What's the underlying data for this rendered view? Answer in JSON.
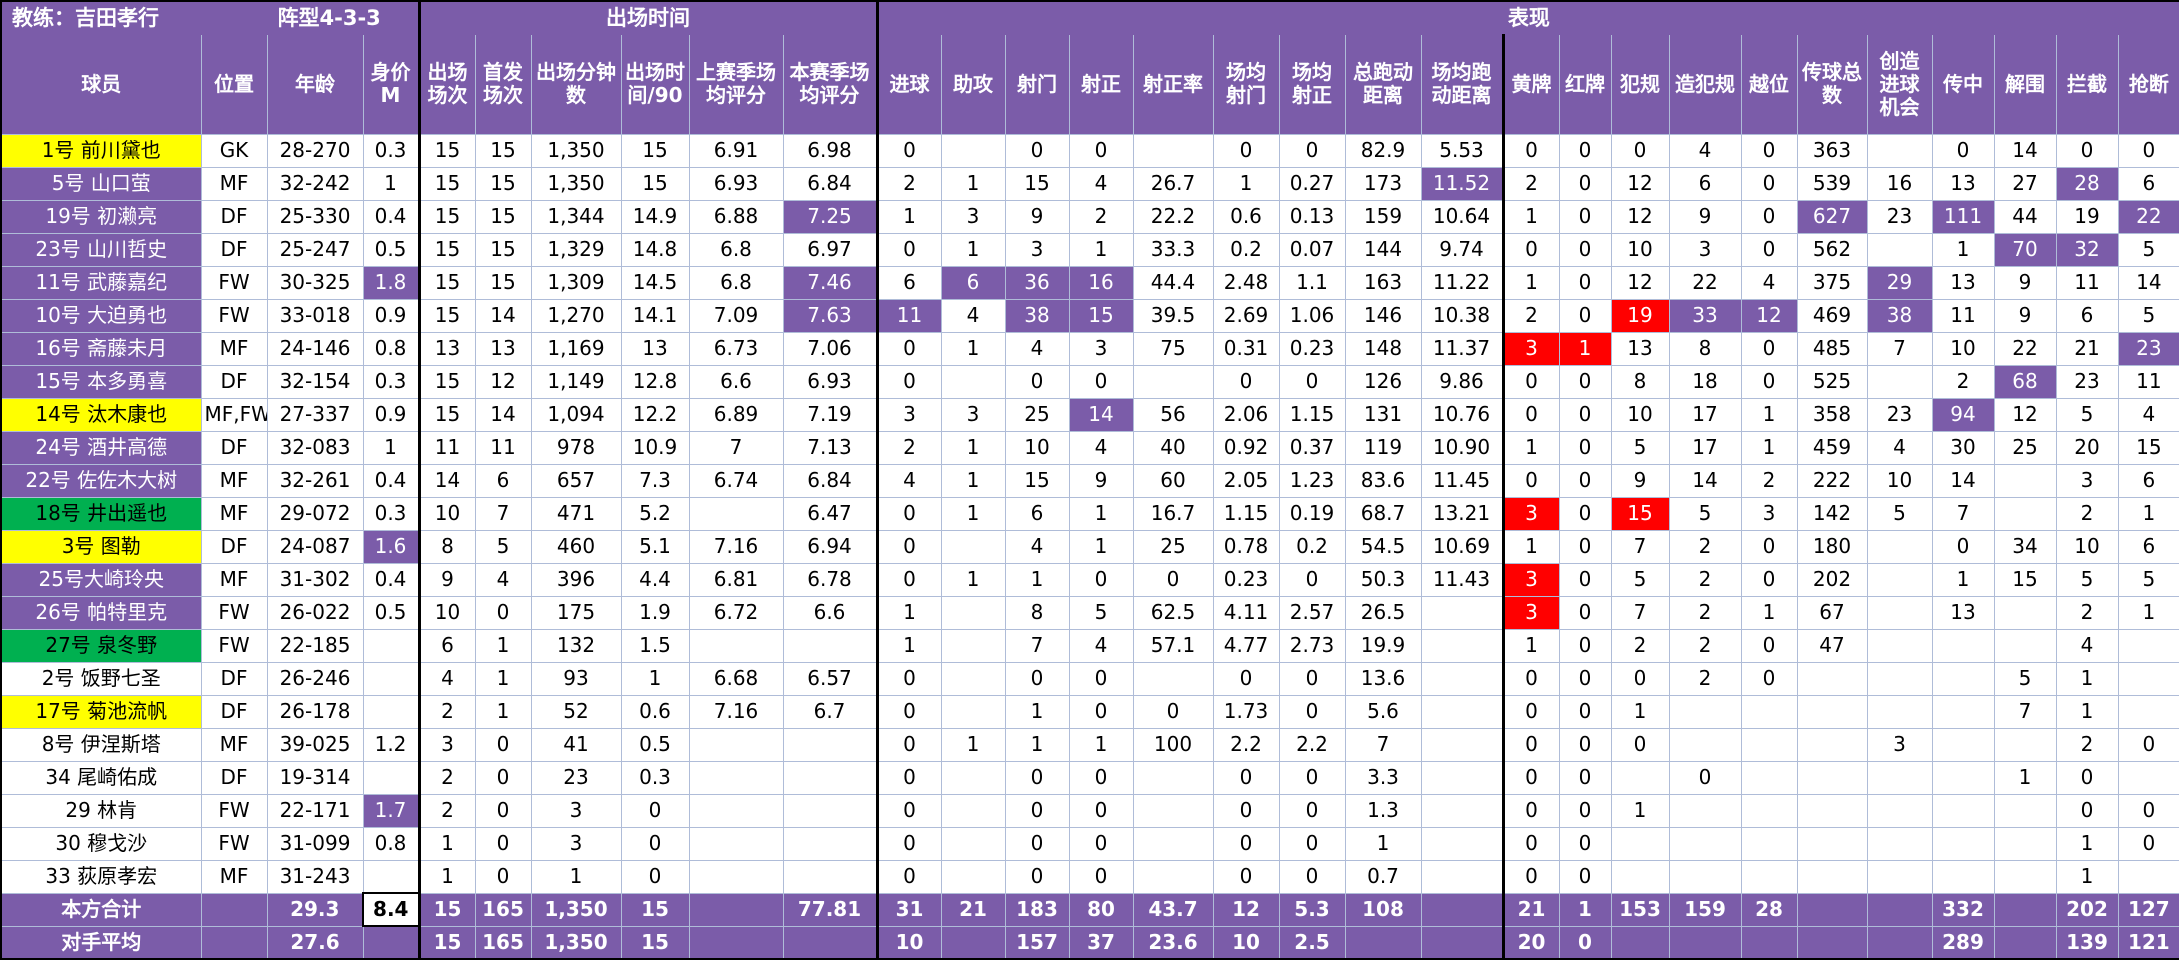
{
  "meta": {
    "coach_label": "教练：吉田孝行",
    "formation_label": "阵型4-3-3",
    "section_playing_time": "出场时间",
    "section_performance": "表现"
  },
  "colors": {
    "header-purple": "#7B5CA9",
    "highlight-purple": "#7B5CA9",
    "highlight-red": "#FF0000",
    "name-yellow": "#FFFF00",
    "name-green": "#00B050",
    "grid-line": "#AFBCD8"
  },
  "layout_note": "highlight keys are 0-based indexes into cells[]; purple = purple bg white text, red = red bg white text, selected = white cell with black border",
  "columns": [
    "球员",
    "位置",
    "年龄",
    "身价M",
    "出场场次",
    "首发场次",
    "出场分钟数",
    "出场时间/90",
    "上赛季场均评分",
    "本赛季场均评分",
    "进球",
    "助攻",
    "射门",
    "射正",
    "射正率",
    "场均射门",
    "场均射正",
    "总跑动距离",
    "场均跑动距离",
    "黄牌",
    "红牌",
    "犯规",
    "造犯规",
    "越位",
    "传球总数",
    "创造进球机会",
    "传中",
    "解围",
    "拦截",
    "抢断"
  ],
  "players": [
    {
      "name": "1号 前川黛也",
      "name_bg": "yellow",
      "cells": [
        "GK",
        "28-270",
        "0.3",
        "15",
        "15",
        "1,350",
        "15",
        "6.91",
        "6.98",
        "0",
        "",
        "0",
        "0",
        "",
        "0",
        "0",
        "82.9",
        "5.53",
        "0",
        "0",
        "0",
        "4",
        "0",
        "363",
        "",
        "0",
        "14",
        "0",
        "0"
      ],
      "highlights": {}
    },
    {
      "name": "5号 山口萤",
      "name_bg": "purple",
      "cells": [
        "MF",
        "32-242",
        "1",
        "15",
        "15",
        "1,350",
        "15",
        "6.93",
        "6.84",
        "2",
        "1",
        "15",
        "4",
        "26.7",
        "1",
        "0.27",
        "173",
        "11.52",
        "2",
        "0",
        "12",
        "6",
        "0",
        "539",
        "16",
        "13",
        "27",
        "28",
        "6"
      ],
      "highlights": {
        "17": "purple",
        "27": "purple"
      }
    },
    {
      "name": "19号 初濑亮",
      "name_bg": "purple",
      "cells": [
        "DF",
        "25-330",
        "0.4",
        "15",
        "15",
        "1,344",
        "14.9",
        "6.88",
        "7.25",
        "1",
        "3",
        "9",
        "2",
        "22.2",
        "0.6",
        "0.13",
        "159",
        "10.64",
        "1",
        "0",
        "12",
        "9",
        "0",
        "627",
        "23",
        "111",
        "44",
        "19",
        "22"
      ],
      "highlights": {
        "8": "purple",
        "23": "purple",
        "25": "purple",
        "28": "purple"
      }
    },
    {
      "name": "23号 山川哲史",
      "name_bg": "purple",
      "cells": [
        "DF",
        "25-247",
        "0.5",
        "15",
        "15",
        "1,329",
        "14.8",
        "6.8",
        "6.97",
        "0",
        "1",
        "3",
        "1",
        "33.3",
        "0.2",
        "0.07",
        "144",
        "9.74",
        "0",
        "0",
        "10",
        "3",
        "0",
        "562",
        "",
        "1",
        "70",
        "32",
        "5"
      ],
      "highlights": {
        "26": "purple",
        "27": "purple"
      }
    },
    {
      "name": "11号 武藤嘉纪",
      "name_bg": "purple",
      "cells": [
        "FW",
        "30-325",
        "1.8",
        "15",
        "15",
        "1,309",
        "14.5",
        "6.8",
        "7.46",
        "6",
        "6",
        "36",
        "16",
        "44.4",
        "2.48",
        "1.1",
        "163",
        "11.22",
        "1",
        "0",
        "12",
        "22",
        "4",
        "375",
        "29",
        "13",
        "9",
        "11",
        "14"
      ],
      "highlights": {
        "2": "purple",
        "8": "purple",
        "10": "purple",
        "11": "purple",
        "12": "purple",
        "24": "purple"
      }
    },
    {
      "name": "10号 大迫勇也",
      "name_bg": "purple",
      "cells": [
        "FW",
        "33-018",
        "0.9",
        "15",
        "14",
        "1,270",
        "14.1",
        "7.09",
        "7.63",
        "11",
        "4",
        "38",
        "15",
        "39.5",
        "2.69",
        "1.06",
        "146",
        "10.38",
        "2",
        "0",
        "19",
        "33",
        "12",
        "469",
        "38",
        "11",
        "9",
        "6",
        "5"
      ],
      "highlights": {
        "8": "purple",
        "9": "purple",
        "11": "purple",
        "12": "purple",
        "20": "red",
        "21": "purple",
        "22": "purple",
        "24": "purple"
      }
    },
    {
      "name": "16号 斋藤未月",
      "name_bg": "purple",
      "cells": [
        "MF",
        "24-146",
        "0.8",
        "13",
        "13",
        "1,169",
        "13",
        "6.73",
        "7.06",
        "0",
        "1",
        "4",
        "3",
        "75",
        "0.31",
        "0.23",
        "148",
        "11.37",
        "3",
        "1",
        "13",
        "8",
        "0",
        "485",
        "7",
        "10",
        "22",
        "21",
        "23"
      ],
      "highlights": {
        "18": "red",
        "19": "red",
        "28": "purple"
      }
    },
    {
      "name": "15号 本多勇喜",
      "name_bg": "purple",
      "cells": [
        "DF",
        "32-154",
        "0.3",
        "15",
        "12",
        "1,149",
        "12.8",
        "6.6",
        "6.93",
        "0",
        "",
        "0",
        "0",
        "",
        "0",
        "0",
        "126",
        "9.86",
        "0",
        "0",
        "8",
        "18",
        "0",
        "525",
        "",
        "2",
        "68",
        "23",
        "11"
      ],
      "highlights": {
        "26": "purple"
      }
    },
    {
      "name": "14号 汰木康也",
      "name_bg": "yellow",
      "cells": [
        "MF,FW",
        "27-337",
        "0.9",
        "15",
        "14",
        "1,094",
        "12.2",
        "6.89",
        "7.19",
        "3",
        "3",
        "25",
        "14",
        "56",
        "2.06",
        "1.15",
        "131",
        "10.76",
        "0",
        "0",
        "10",
        "17",
        "1",
        "358",
        "23",
        "94",
        "12",
        "5",
        "4"
      ],
      "highlights": {
        "12": "purple",
        "25": "purple"
      }
    },
    {
      "name": "24号 酒井高德",
      "name_bg": "purple",
      "cells": [
        "DF",
        "32-083",
        "1",
        "11",
        "11",
        "978",
        "10.9",
        "7",
        "7.13",
        "2",
        "1",
        "10",
        "4",
        "40",
        "0.92",
        "0.37",
        "119",
        "10.90",
        "1",
        "0",
        "5",
        "17",
        "1",
        "459",
        "4",
        "30",
        "25",
        "20",
        "15"
      ],
      "highlights": {}
    },
    {
      "name": "22号 佐佐木大树",
      "name_bg": "purple",
      "cells": [
        "MF",
        "32-261",
        "0.4",
        "14",
        "6",
        "657",
        "7.3",
        "6.74",
        "6.84",
        "4",
        "1",
        "15",
        "9",
        "60",
        "2.05",
        "1.23",
        "83.6",
        "11.45",
        "0",
        "0",
        "9",
        "14",
        "2",
        "222",
        "10",
        "14",
        "",
        "3",
        "6"
      ],
      "highlights": {}
    },
    {
      "name": "18号 井出遥也",
      "name_bg": "green",
      "cells": [
        "MF",
        "29-072",
        "0.3",
        "10",
        "7",
        "471",
        "5.2",
        "",
        "6.47",
        "0",
        "1",
        "6",
        "1",
        "16.7",
        "1.15",
        "0.19",
        "68.7",
        "13.21",
        "3",
        "0",
        "15",
        "5",
        "3",
        "142",
        "5",
        "7",
        "",
        "2",
        "1"
      ],
      "highlights": {
        "18": "red",
        "20": "red"
      }
    },
    {
      "name": "3号 图勒",
      "name_bg": "yellow",
      "cells": [
        "DF",
        "24-087",
        "1.6",
        "8",
        "5",
        "460",
        "5.1",
        "7.16",
        "6.94",
        "0",
        "",
        "4",
        "1",
        "25",
        "0.78",
        "0.2",
        "54.5",
        "10.69",
        "1",
        "0",
        "7",
        "2",
        "0",
        "180",
        "",
        "0",
        "34",
        "10",
        "6"
      ],
      "highlights": {
        "2": "purple"
      }
    },
    {
      "name": "25号大崎玲央",
      "name_bg": "purple",
      "cells": [
        "MF",
        "31-302",
        "0.4",
        "9",
        "4",
        "396",
        "4.4",
        "6.81",
        "6.78",
        "0",
        "1",
        "1",
        "0",
        "0",
        "0.23",
        "0",
        "50.3",
        "11.43",
        "3",
        "0",
        "5",
        "2",
        "0",
        "202",
        "",
        "1",
        "15",
        "5",
        "5"
      ],
      "highlights": {
        "18": "red"
      }
    },
    {
      "name": "26号 帕特里克",
      "name_bg": "purple",
      "cells": [
        "FW",
        "26-022",
        "0.5",
        "10",
        "0",
        "175",
        "1.9",
        "6.72",
        "6.6",
        "1",
        "",
        "8",
        "5",
        "62.5",
        "4.11",
        "2.57",
        "26.5",
        "",
        "3",
        "0",
        "7",
        "2",
        "1",
        "67",
        "",
        "13",
        "",
        "2",
        "1"
      ],
      "highlights": {
        "18": "red"
      }
    },
    {
      "name": "27号 泉冬野",
      "name_bg": "green",
      "cells": [
        "FW",
        "22-185",
        "",
        "6",
        "1",
        "132",
        "1.5",
        "",
        "",
        "1",
        "",
        "7",
        "4",
        "57.1",
        "4.77",
        "2.73",
        "19.9",
        "",
        "1",
        "0",
        "2",
        "2",
        "0",
        "47",
        "",
        "",
        "",
        "4",
        ""
      ],
      "highlights": {}
    },
    {
      "name": "2号 饭野七圣",
      "name_bg": "white",
      "cells": [
        "DF",
        "26-246",
        "",
        "4",
        "1",
        "93",
        "1",
        "6.68",
        "6.57",
        "0",
        "",
        "0",
        "0",
        "",
        "0",
        "0",
        "13.6",
        "",
        "0",
        "0",
        "0",
        "2",
        "0",
        "",
        "",
        "",
        "5",
        "1",
        ""
      ],
      "highlights": {}
    },
    {
      "name": "17号 菊池流帆",
      "name_bg": "yellow",
      "cells": [
        "DF",
        "26-178",
        "",
        "2",
        "1",
        "52",
        "0.6",
        "7.16",
        "6.7",
        "0",
        "",
        "1",
        "0",
        "0",
        "1.73",
        "0",
        "5.6",
        "",
        "0",
        "0",
        "1",
        "",
        "",
        "",
        "",
        "",
        "7",
        "1",
        ""
      ],
      "highlights": {}
    },
    {
      "name": "8号 伊涅斯塔",
      "name_bg": "white",
      "cells": [
        "MF",
        "39-025",
        "1.2",
        "3",
        "0",
        "41",
        "0.5",
        "",
        "",
        "0",
        "1",
        "1",
        "1",
        "100",
        "2.2",
        "2.2",
        "7",
        "",
        "0",
        "0",
        "0",
        "",
        "",
        "",
        "3",
        "",
        "",
        "2",
        "0"
      ],
      "highlights": {}
    },
    {
      "name": "34 尾崎佑成",
      "name_bg": "white",
      "cells": [
        "DF",
        "19-314",
        "",
        "2",
        "0",
        "23",
        "0.3",
        "",
        "",
        "0",
        "",
        "0",
        "0",
        "",
        "0",
        "0",
        "3.3",
        "",
        "0",
        "0",
        "",
        "0",
        "",
        "",
        "",
        "",
        "1",
        "0",
        ""
      ],
      "highlights": {}
    },
    {
      "name": "29 林肯",
      "name_bg": "white",
      "cells": [
        "FW",
        "22-171",
        "1.7",
        "2",
        "0",
        "3",
        "0",
        "",
        "",
        "0",
        "",
        "0",
        "0",
        "",
        "0",
        "0",
        "1.3",
        "",
        "0",
        "0",
        "1",
        "",
        "",
        "",
        "",
        "",
        "",
        "0",
        "0"
      ],
      "highlights": {
        "2": "purple"
      }
    },
    {
      "name": "30 穆戈沙",
      "name_bg": "white",
      "cells": [
        "FW",
        "31-099",
        "0.8",
        "1",
        "0",
        "3",
        "0",
        "",
        "",
        "0",
        "",
        "0",
        "0",
        "",
        "0",
        "0",
        "1",
        "",
        "0",
        "0",
        "",
        "",
        "",
        "",
        "",
        "",
        "",
        "1",
        "0"
      ],
      "highlights": {}
    },
    {
      "name": "33 荻原孝宏",
      "name_bg": "white",
      "cells": [
        "MF",
        "31-243",
        "",
        "1",
        "0",
        "1",
        "0",
        "",
        "",
        "0",
        "",
        "0",
        "0",
        "",
        "0",
        "0",
        "0.7",
        "",
        "0",
        "0",
        "",
        "",
        "",
        "",
        "",
        "",
        "",
        "1",
        ""
      ],
      "highlights": {}
    }
  ],
  "totals": [
    {
      "name": "本方合计",
      "name_bg": "total",
      "cells": [
        "",
        "29.3",
        "8.4",
        "15",
        "165",
        "1,350",
        "15",
        "",
        "77.81",
        "31",
        "21",
        "183",
        "80",
        "43.7",
        "12",
        "5.3",
        "108",
        "",
        "21",
        "1",
        "153",
        "159",
        "28",
        "",
        "",
        "332",
        "",
        "202",
        "127"
      ],
      "highlights": {
        "2": "selected"
      }
    },
    {
      "name": "对手平均",
      "name_bg": "total",
      "cells": [
        "",
        "27.6",
        "",
        "15",
        "165",
        "1,350",
        "15",
        "",
        "",
        "10",
        "",
        "157",
        "37",
        "23.6",
        "10",
        "2.5",
        "",
        "",
        "20",
        "0",
        "",
        "",
        "",
        "",
        "",
        "289",
        "",
        "139",
        "121"
      ],
      "highlights": {}
    }
  ]
}
